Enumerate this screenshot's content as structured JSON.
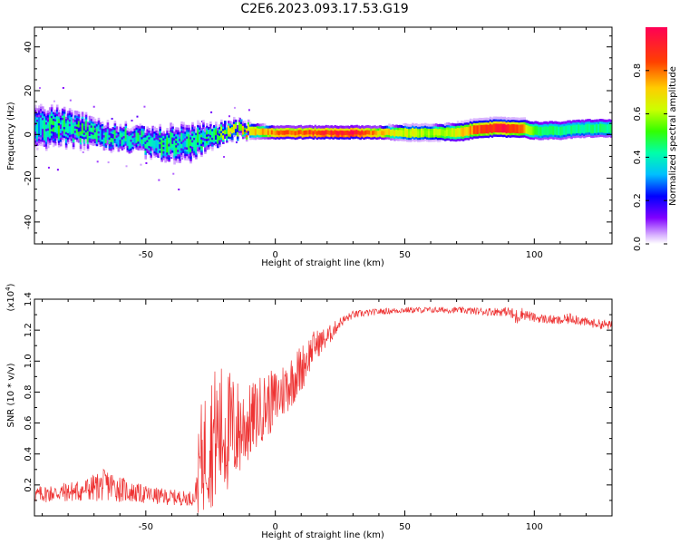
{
  "figure_title": "C2E6.2023.093.17.53.G19",
  "chart_data": [
    {
      "type": "heatmap",
      "title": "",
      "xlabel": "Height of straight line (km)",
      "ylabel": "Frequency (Hz)",
      "xlim": [
        -93,
        130
      ],
      "ylim": [
        -50,
        49
      ],
      "xticks": [
        -50,
        0,
        50,
        100
      ],
      "yticks": [
        -40,
        -20,
        0,
        20,
        40
      ],
      "grid": false,
      "colorbar": {
        "label": "Normalized spectral amplitude",
        "range": [
          0.0,
          1.0
        ],
        "ticks": [
          0.0,
          0.2,
          0.4,
          0.6,
          0.8
        ],
        "colormap": [
          "#ffffff",
          "#d9b3ff",
          "#8000ff",
          "#0000ff",
          "#00bfff",
          "#00ffaa",
          "#33ff00",
          "#ccff00",
          "#ffcc00",
          "#ff4000",
          "#ff0055"
        ]
      },
      "spectral_trace": {
        "x": [
          -93,
          -85,
          -75,
          -65,
          -55,
          -45,
          -35,
          -25,
          -18,
          -10,
          0,
          10,
          20,
          30,
          40,
          50,
          60,
          70,
          80,
          90,
          95,
          100,
          110,
          120,
          130
        ],
        "center_hz": [
          3,
          4,
          2,
          0,
          -2,
          -4,
          -4,
          -1,
          2,
          2,
          1,
          1,
          1,
          1,
          1,
          1,
          1,
          1,
          3,
          3,
          3,
          2,
          2,
          3,
          3
        ],
        "spread_hz": [
          7,
          6,
          5,
          4,
          4,
          5,
          6,
          4,
          3,
          2.5,
          2,
          2,
          2,
          2,
          2,
          2.5,
          2.5,
          3,
          3,
          3,
          3,
          3,
          3,
          3,
          3
        ],
        "peak_amplitude": [
          0.35,
          0.45,
          0.45,
          0.4,
          0.4,
          0.45,
          0.4,
          0.45,
          0.6,
          0.7,
          0.8,
          0.85,
          0.9,
          0.95,
          0.75,
          0.65,
          0.6,
          0.65,
          0.9,
          0.95,
          0.8,
          0.5,
          0.45,
          0.45,
          0.45
        ]
      }
    },
    {
      "type": "line",
      "title": "",
      "xlabel": "Height of straight line (km)",
      "ylabel": "SNR (10 * v/v)",
      "y_multiplier_label": "(x10",
      "y_multiplier_exponent": "4",
      "y_multiplier_close": ")",
      "xlim": [
        -93,
        130
      ],
      "ylim": [
        0,
        14000
      ],
      "xticks": [
        -50,
        0,
        50,
        100
      ],
      "yticks": [
        2000,
        4000,
        6000,
        8000,
        10000,
        12000,
        14000
      ],
      "ytick_labels": [
        "0.2",
        "0.4",
        "0.6",
        "0.8",
        "1.0",
        "1.2",
        "1.4"
      ],
      "grid": false,
      "color": "#ee3333",
      "series": [
        {
          "x": [
            -93,
            -85,
            -75,
            -65,
            -55,
            -45,
            -35,
            -31,
            -29,
            -25,
            -20,
            -15,
            -10,
            -5,
            0,
            5,
            10,
            15,
            20,
            25,
            30,
            40,
            50,
            60,
            70,
            80,
            90,
            93,
            95,
            100,
            110,
            115,
            120,
            130
          ],
          "mean": [
            1200,
            1300,
            1400,
            1700,
            1300,
            1100,
            1000,
            1000,
            3500,
            5000,
            5500,
            5500,
            6000,
            7000,
            7500,
            8500,
            9500,
            11000,
            11500,
            12500,
            13000,
            13200,
            13300,
            13300,
            13300,
            13200,
            13200,
            12800,
            13100,
            12800,
            12600,
            12800,
            12500,
            12300
          ],
          "noise": [
            900,
            1000,
            1200,
            1800,
            1100,
            900,
            800,
            800,
            3500,
            4500,
            4500,
            3500,
            2500,
            2200,
            2000,
            1800,
            1600,
            1000,
            700,
            350,
            250,
            200,
            200,
            200,
            200,
            250,
            300,
            600,
            400,
            300,
            300,
            400,
            300,
            300
          ]
        }
      ]
    }
  ]
}
